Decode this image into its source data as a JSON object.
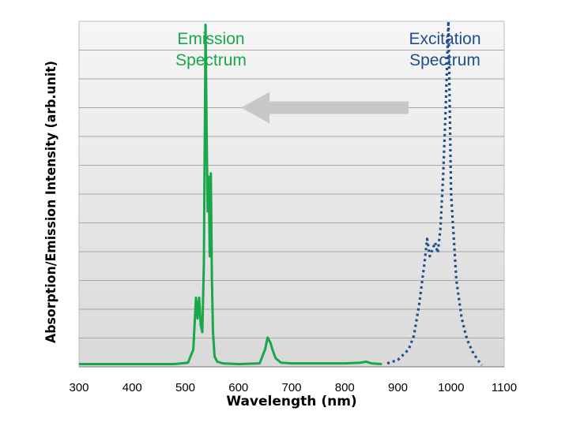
{
  "chart_data": {
    "type": "line",
    "title": "",
    "xlabel": "Wavelength (nm)",
    "ylabel": "Absorption/Emission Intensity (arb.unit)",
    "xlim": [
      300,
      1100
    ],
    "ylim": [
      0,
      10
    ],
    "x_ticks": [
      "300",
      "400",
      "500",
      "600",
      "700",
      "800",
      "900",
      "1000",
      "1100"
    ],
    "grid": true,
    "colors": {
      "emission": "#1aa64a",
      "excitation": "#1f4e8c",
      "arrow": "#c8c8c8"
    },
    "annotations": {
      "emission_label": [
        "Emission",
        "Spectrum"
      ],
      "excitation_label": [
        "Excitation",
        "Spectrum"
      ],
      "arrow": {
        "from_x": 920,
        "to_x": 605,
        "y": 7.5,
        "direction": "left"
      }
    },
    "series": [
      {
        "name": "Emission Spectrum",
        "style": "solid",
        "x": [
          300,
          400,
          480,
          505,
          515,
          520,
          523,
          526,
          529,
          532,
          535,
          538,
          540,
          542,
          544,
          546,
          548,
          550,
          552,
          555,
          560,
          570,
          600,
          640,
          650,
          655,
          660,
          665,
          670,
          680,
          700,
          750,
          800,
          830,
          840,
          850,
          870
        ],
        "y": [
          0.08,
          0.08,
          0.08,
          0.12,
          0.5,
          2.0,
          1.4,
          2.0,
          1.2,
          1.0,
          3.0,
          9.9,
          7.0,
          4.5,
          5.5,
          3.2,
          5.6,
          2.6,
          1.0,
          0.3,
          0.15,
          0.1,
          0.08,
          0.1,
          0.5,
          0.85,
          0.7,
          0.45,
          0.25,
          0.12,
          0.1,
          0.1,
          0.1,
          0.12,
          0.15,
          0.1,
          0.08
        ]
      },
      {
        "name": "Excitation Spectrum",
        "style": "dotted",
        "x": [
          880,
          900,
          920,
          930,
          940,
          950,
          955,
          960,
          965,
          970,
          975,
          980,
          985,
          990,
          995,
          1000,
          1010,
          1020,
          1030,
          1040,
          1050,
          1058
        ],
        "y": [
          0.1,
          0.2,
          0.5,
          0.9,
          1.8,
          3.0,
          3.7,
          3.2,
          3.4,
          3.6,
          3.3,
          4.0,
          5.5,
          7.5,
          10.0,
          5.0,
          2.5,
          1.4,
          0.8,
          0.45,
          0.2,
          0.05
        ]
      }
    ]
  }
}
